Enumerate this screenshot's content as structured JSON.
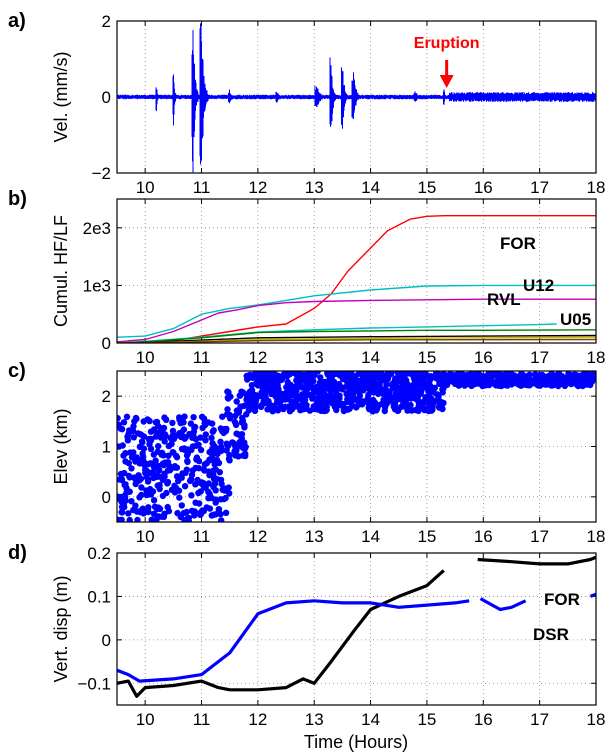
{
  "figure": {
    "xlabel": "Time (Hours)",
    "x_ticks": [
      "10",
      "11",
      "12",
      "13",
      "14",
      "15",
      "16",
      "17",
      "18"
    ]
  },
  "chart_data": [
    {
      "panel": "a)",
      "type": "line",
      "ylabel": "Vel. (mm/s)",
      "xlim": [
        9.5,
        18
      ],
      "ylim": [
        -2,
        2
      ],
      "y_ticks": [
        "2",
        "0",
        "−2"
      ],
      "grid": true,
      "color": "#0000ff",
      "annotation": {
        "text": "Eruption",
        "x": 15.35,
        "color": "#ff0000"
      },
      "bursts": [
        {
          "x": 10.2,
          "amp": 0.4,
          "width": 0.05
        },
        {
          "x": 10.5,
          "amp": 0.9,
          "width": 0.05
        },
        {
          "x": 10.85,
          "amp": 2.0,
          "width": 0.08
        },
        {
          "x": 11.0,
          "amp": 2.0,
          "width": 0.1
        },
        {
          "x": 11.5,
          "amp": 0.2,
          "width": 0.1
        },
        {
          "x": 12.35,
          "amp": 0.15,
          "width": 0.1
        },
        {
          "x": 13.05,
          "amp": 0.3,
          "width": 0.15
        },
        {
          "x": 13.3,
          "amp": 1.05,
          "width": 0.08
        },
        {
          "x": 13.5,
          "amp": 1.0,
          "width": 0.08
        },
        {
          "x": 13.7,
          "amp": 0.7,
          "width": 0.1
        },
        {
          "x": 14.8,
          "amp": 0.15,
          "width": 0.1
        },
        {
          "x": 15.3,
          "amp": 0.25,
          "width": 0.05
        }
      ],
      "baseline_noise": 0.06,
      "post_eruption_band": {
        "from": 15.4,
        "to": 18,
        "amp": 0.13
      }
    },
    {
      "panel": "b)",
      "type": "line",
      "ylabel": "Cumul. HF/LF",
      "xlim": [
        9.5,
        18
      ],
      "ylim": [
        0,
        2500
      ],
      "y_ticks": [
        "0",
        "1e3",
        "2e3"
      ],
      "y_tick_values": [
        0,
        1000,
        2000
      ],
      "grid": true,
      "series": [
        {
          "name": "FOR",
          "color": "#ff0000",
          "x": [
            9.5,
            10,
            10.5,
            11,
            11.5,
            12,
            12.5,
            13,
            13.3,
            13.6,
            14,
            14.3,
            14.7,
            15.0,
            15.3,
            16,
            17,
            18
          ],
          "values": [
            0,
            10,
            40,
            120,
            200,
            280,
            330,
            600,
            850,
            1250,
            1650,
            1950,
            2150,
            2200,
            2210,
            2210,
            2210,
            2210
          ]
        },
        {
          "name": "U12",
          "color": "#00bfbf",
          "x": [
            9.5,
            10,
            10.5,
            11,
            11.5,
            12,
            12.5,
            13,
            14,
            15,
            16,
            17,
            18
          ],
          "values": [
            100,
            120,
            250,
            500,
            600,
            660,
            740,
            820,
            920,
            990,
            1000,
            1000,
            1000
          ]
        },
        {
          "name": "RVL",
          "color": "#bf00bf",
          "x": [
            9.5,
            10,
            10.5,
            11,
            11.3,
            11.6,
            12,
            12.5,
            13,
            14,
            15,
            16,
            17,
            18
          ],
          "values": [
            20,
            60,
            200,
            400,
            520,
            570,
            650,
            700,
            720,
            740,
            750,
            760,
            760,
            760
          ]
        },
        {
          "name": "U05",
          "color": "#00bfbf",
          "x": [
            9.5,
            10,
            11,
            12,
            13,
            14,
            15,
            16,
            17,
            17.3
          ],
          "values": [
            0,
            30,
            100,
            190,
            230,
            260,
            280,
            300,
            320,
            330
          ]
        },
        {
          "name": "",
          "color": "#007f00",
          "x": [
            9.5,
            10,
            11,
            12,
            13,
            14,
            15,
            16,
            18
          ],
          "values": [
            0,
            20,
            90,
            180,
            200,
            210,
            220,
            220,
            230
          ]
        },
        {
          "name": "",
          "color": "#000000",
          "x": [
            9.5,
            10,
            11,
            12,
            14,
            16,
            18
          ],
          "values": [
            0,
            10,
            50,
            90,
            110,
            120,
            130
          ]
        },
        {
          "name": "",
          "color": "#bfbf00",
          "x": [
            9.5,
            10,
            11,
            12,
            14,
            16,
            18
          ],
          "values": [
            0,
            5,
            30,
            60,
            80,
            90,
            100
          ]
        },
        {
          "name": "",
          "color": "#7f3f00",
          "x": [
            9.5,
            11,
            12,
            14,
            18
          ],
          "values": [
            0,
            20,
            40,
            55,
            60
          ]
        }
      ],
      "labels": [
        "FOR",
        "U12",
        "RVL",
        "U05"
      ]
    },
    {
      "panel": "c)",
      "type": "scatter",
      "ylabel": "Elev (km)",
      "xlim": [
        9.5,
        18
      ],
      "ylim": [
        -0.5,
        2.5
      ],
      "y_ticks": [
        "2",
        "1",
        "0"
      ],
      "y_tick_values": [
        2,
        1,
        0
      ],
      "grid": true,
      "color": "#0000ff",
      "clusters": [
        {
          "x_from": 9.5,
          "x_to": 11.5,
          "y_min": -0.5,
          "y_max": 1.6,
          "n": 380
        },
        {
          "x_from": 11.4,
          "x_to": 11.8,
          "y_min": 0.8,
          "y_max": 2.1,
          "n": 60
        },
        {
          "x_from": 11.8,
          "x_to": 15.3,
          "y_min": 1.7,
          "y_max": 2.5,
          "n": 700
        },
        {
          "x_from": 15.3,
          "x_to": 18,
          "y_min": 2.2,
          "y_max": 2.45,
          "n": 400
        }
      ]
    },
    {
      "panel": "d)",
      "type": "line",
      "ylabel": "Vert. disp (m)",
      "xlim": [
        9.5,
        18
      ],
      "ylim": [
        -0.15,
        0.2
      ],
      "y_ticks": [
        "0.2",
        "0.1",
        "0",
        "−0.1"
      ],
      "y_tick_values": [
        0.2,
        0.1,
        0,
        -0.1
      ],
      "grid": true,
      "series": [
        {
          "name": "FOR",
          "color": "#000000",
          "x": [
            9.5,
            9.7,
            9.85,
            10.0,
            10.5,
            11.0,
            11.3,
            11.5,
            12.0,
            12.5,
            12.8,
            13.0,
            13.3,
            13.7,
            14.0,
            14.5,
            15.0,
            15.3,
            null,
            15.9,
            16.5,
            17.0,
            17.5,
            17.9,
            18.0
          ],
          "values": [
            -0.1,
            -0.095,
            -0.13,
            -0.11,
            -0.105,
            -0.095,
            -0.11,
            -0.115,
            -0.115,
            -0.11,
            -0.09,
            -0.1,
            -0.05,
            0.02,
            0.07,
            0.1,
            0.125,
            0.16,
            null,
            0.185,
            0.18,
            0.175,
            0.175,
            0.185,
            0.19
          ]
        },
        {
          "name": "DSR",
          "color": "#0000ff",
          "x": [
            9.5,
            9.7,
            9.9,
            10.5,
            11.0,
            11.5,
            12.0,
            12.5,
            13.0,
            13.5,
            14.0,
            14.5,
            15.0,
            15.5,
            15.75,
            null,
            15.95,
            16.3,
            16.5,
            16.75,
            null,
            17.9,
            18.0
          ],
          "values": [
            -0.07,
            -0.08,
            -0.095,
            -0.09,
            -0.08,
            -0.03,
            0.06,
            0.085,
            0.09,
            0.085,
            0.085,
            0.075,
            0.08,
            0.085,
            0.09,
            null,
            0.095,
            0.07,
            0.075,
            0.09,
            null,
            0.1,
            0.105
          ]
        }
      ],
      "labels": [
        "FOR",
        "DSR"
      ]
    }
  ]
}
